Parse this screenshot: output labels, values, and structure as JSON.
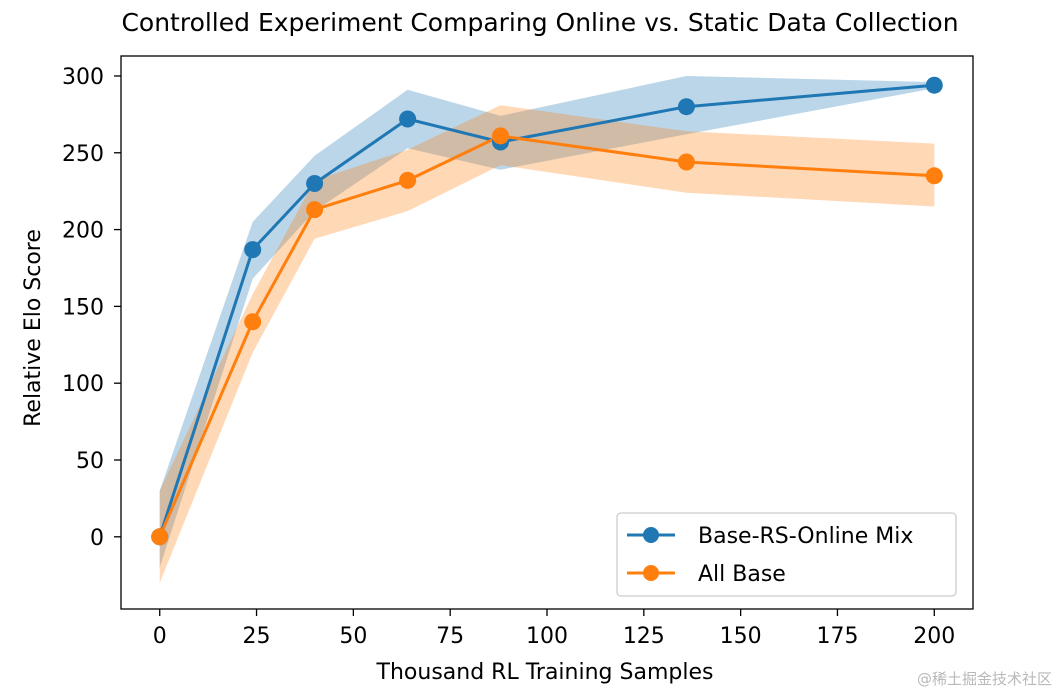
{
  "chart_data": {
    "type": "line",
    "title": "Controlled Experiment Comparing Online vs. Static Data Collection",
    "xlabel": "Thousand RL Training Samples",
    "ylabel": "Relative Elo Score",
    "xlim": [
      -10,
      210
    ],
    "ylim": [
      -47,
      313
    ],
    "xticks": [
      0,
      25,
      50,
      75,
      100,
      125,
      150,
      175,
      200
    ],
    "yticks": [
      0,
      50,
      100,
      150,
      200,
      250,
      300
    ],
    "grid": false,
    "legend_position": "lower-right",
    "series": [
      {
        "name": "Base-RS-Online Mix",
        "color": "#1f77b4",
        "x": [
          0,
          24,
          40,
          64,
          88,
          136,
          200
        ],
        "y": [
          0,
          187,
          230,
          272,
          257,
          280,
          294
        ],
        "lower": [
          -20,
          168,
          212,
          253,
          239,
          262,
          292
        ],
        "upper": [
          30,
          205,
          248,
          291,
          274,
          300,
          296
        ]
      },
      {
        "name": "All Base",
        "color": "#ff7f0e",
        "x": [
          0,
          24,
          40,
          64,
          88,
          136,
          200
        ],
        "y": [
          0,
          140,
          213,
          232,
          261,
          244,
          235
        ],
        "lower": [
          -30,
          120,
          194,
          212,
          242,
          224,
          215
        ],
        "upper": [
          30,
          158,
          232,
          252,
          281,
          264,
          256
        ]
      }
    ]
  },
  "watermark": "@稀土掘金技术社区"
}
